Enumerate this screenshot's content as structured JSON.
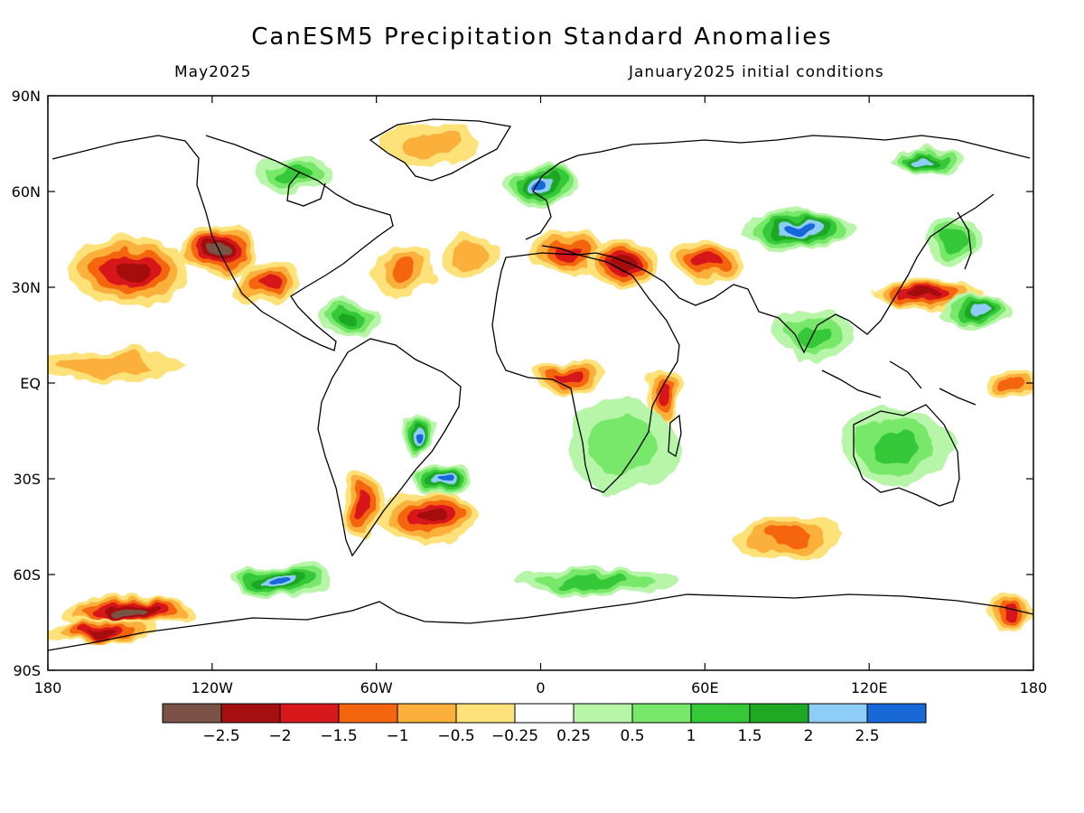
{
  "title": "CanESM5 Precipitation Standard Anomalies",
  "valid_month": "May2025",
  "initial_conditions": "January2025 initial conditions",
  "lat_ticks": [
    "90N",
    "60N",
    "30N",
    "EQ",
    "30S",
    "60S",
    "90S"
  ],
  "lon_ticks": [
    "180",
    "120W",
    "60W",
    "0",
    "60E",
    "120E",
    "180"
  ],
  "colorbar": {
    "colors": [
      "#7a5246",
      "#a50f0f",
      "#d7191c",
      "#f4650f",
      "#fbb03b",
      "#fde27a",
      "#ffffff",
      "#b7f5a8",
      "#78e86b",
      "#36c838",
      "#1fa823",
      "#8ecdf5",
      "#1868d8"
    ],
    "labels": [
      "−2.5",
      "−2",
      "−1.5",
      "−1",
      "−0.5",
      "−0.25",
      "0.25",
      "0.5",
      "1",
      "1.5",
      "2",
      "2.5"
    ]
  },
  "chart_data": {
    "type": "heatmap",
    "variable": "Precipitation standard anomaly",
    "x_range_deg": [
      -180,
      180
    ],
    "y_range_deg": [
      -90,
      90
    ],
    "levels": [
      -2.5,
      -2,
      -1.5,
      -1,
      -0.5,
      -0.25,
      0.25,
      0.5,
      1,
      1.5,
      2,
      2.5
    ],
    "regions": [
      {
        "lon": -150,
        "lat": 35,
        "rx": 22,
        "ry": 10,
        "value": -2.0
      },
      {
        "lon": -118,
        "lat": 42,
        "rx": 14,
        "ry": 8,
        "value": -2.6
      },
      {
        "lon": -100,
        "lat": 32,
        "rx": 12,
        "ry": 7,
        "value": -1.6
      },
      {
        "lon": -160,
        "lat": 5,
        "rx": 30,
        "ry": 5,
        "value": -0.6
      },
      {
        "lon": -150,
        "lat": -72,
        "rx": 25,
        "ry": 5,
        "value": -2.6
      },
      {
        "lon": -160,
        "lat": -78,
        "rx": 20,
        "ry": 4,
        "value": -2.0
      },
      {
        "lon": -40,
        "lat": -42,
        "rx": 18,
        "ry": 8,
        "value": -2.2
      },
      {
        "lon": -65,
        "lat": -38,
        "rx": 8,
        "ry": 10,
        "value": -1.6
      },
      {
        "lon": -50,
        "lat": 35,
        "rx": 12,
        "ry": 8,
        "value": -1.2
      },
      {
        "lon": -25,
        "lat": 40,
        "rx": 10,
        "ry": 6,
        "value": -0.8
      },
      {
        "lon": 10,
        "lat": 40,
        "rx": 14,
        "ry": 6,
        "value": -1.6
      },
      {
        "lon": 30,
        "lat": 38,
        "rx": 12,
        "ry": 8,
        "value": -2.0
      },
      {
        "lon": 60,
        "lat": 38,
        "rx": 14,
        "ry": 7,
        "value": -1.8
      },
      {
        "lon": 10,
        "lat": 2,
        "rx": 14,
        "ry": 5,
        "value": -1.8
      },
      {
        "lon": 45,
        "lat": -3,
        "rx": 6,
        "ry": 8,
        "value": -1.6
      },
      {
        "lon": 140,
        "lat": 28,
        "rx": 20,
        "ry": 5,
        "value": -2.0
      },
      {
        "lon": 172,
        "lat": 0,
        "rx": 10,
        "ry": 4,
        "value": -1.2
      },
      {
        "lon": 90,
        "lat": -48,
        "rx": 20,
        "ry": 6,
        "value": -1.4
      },
      {
        "lon": 172,
        "lat": -72,
        "rx": 10,
        "ry": 5,
        "value": -1.8
      },
      {
        "lon": -40,
        "lat": 75,
        "rx": 18,
        "ry": 6,
        "value": -0.6
      },
      {
        "lon": -90,
        "lat": 65,
        "rx": 14,
        "ry": 6,
        "value": 1.2
      },
      {
        "lon": 0,
        "lat": 62,
        "rx": 14,
        "ry": 6,
        "value": 2.6
      },
      {
        "lon": 95,
        "lat": 48,
        "rx": 20,
        "ry": 6,
        "value": 2.6
      },
      {
        "lon": 140,
        "lat": 70,
        "rx": 12,
        "ry": 4,
        "value": 2.0
      },
      {
        "lon": -45,
        "lat": -15,
        "rx": 6,
        "ry": 6,
        "value": 2.6
      },
      {
        "lon": -35,
        "lat": -30,
        "rx": 10,
        "ry": 5,
        "value": 2.6
      },
      {
        "lon": -95,
        "lat": -62,
        "rx": 18,
        "ry": 6,
        "value": 2.6
      },
      {
        "lon": -70,
        "lat": 20,
        "rx": 10,
        "ry": 6,
        "value": 1.6
      },
      {
        "lon": 30,
        "lat": -20,
        "rx": 20,
        "ry": 15,
        "value": 0.6
      },
      {
        "lon": 130,
        "lat": -20,
        "rx": 20,
        "ry": 12,
        "value": 1.2
      },
      {
        "lon": 160,
        "lat": 22,
        "rx": 14,
        "ry": 5,
        "value": 2.4
      },
      {
        "lon": 100,
        "lat": 15,
        "rx": 15,
        "ry": 8,
        "value": 1.0
      },
      {
        "lon": 20,
        "lat": -62,
        "rx": 30,
        "ry": 4,
        "value": 1.2
      },
      {
        "lon": 150,
        "lat": 45,
        "rx": 12,
        "ry": 6,
        "value": 1.2
      }
    ]
  }
}
